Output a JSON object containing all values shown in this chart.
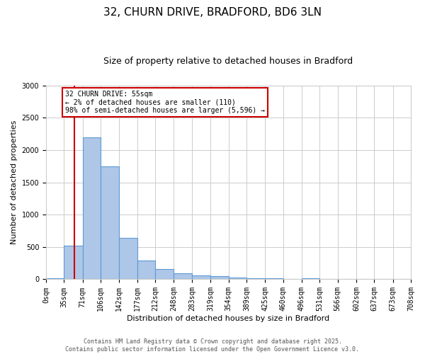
{
  "title1": "32, CHURN DRIVE, BRADFORD, BD6 3LN",
  "title2": "Size of property relative to detached houses in Bradford",
  "xlabel": "Distribution of detached houses by size in Bradford",
  "ylabel": "Number of detached properties",
  "bin_labels": [
    "0sqm",
    "35sqm",
    "71sqm",
    "106sqm",
    "142sqm",
    "177sqm",
    "212sqm",
    "248sqm",
    "283sqm",
    "319sqm",
    "354sqm",
    "389sqm",
    "425sqm",
    "460sqm",
    "496sqm",
    "531sqm",
    "566sqm",
    "602sqm",
    "637sqm",
    "673sqm",
    "708sqm"
  ],
  "bin_edges": [
    0,
    35,
    71,
    106,
    142,
    177,
    212,
    248,
    283,
    319,
    354,
    389,
    425,
    460,
    496,
    531,
    566,
    602,
    637,
    673,
    708
  ],
  "bar_heights": [
    20,
    520,
    2200,
    1750,
    640,
    290,
    155,
    90,
    55,
    45,
    30,
    20,
    15,
    8,
    20,
    5,
    3,
    2,
    1,
    1,
    0
  ],
  "bar_color": "#aec6e8",
  "bar_edge_color": "#5b9bd5",
  "property_size": 55,
  "vline_color": "#cc0000",
  "annotation_text": "32 CHURN DRIVE: 55sqm\n← 2% of detached houses are smaller (110)\n98% of semi-detached houses are larger (5,596) →",
  "annotation_box_color": "#ffffff",
  "annotation_box_edge": "#cc0000",
  "ylim": [
    0,
    3000
  ],
  "yticks": [
    0,
    500,
    1000,
    1500,
    2000,
    2500,
    3000
  ],
  "footer1": "Contains HM Land Registry data © Crown copyright and database right 2025.",
  "footer2": "Contains public sector information licensed under the Open Government Licence v3.0.",
  "bg_color": "#ffffff",
  "grid_color": "#cccccc",
  "title1_fontsize": 11,
  "title2_fontsize": 9,
  "annotation_fontsize": 7,
  "tick_fontsize": 7,
  "axis_label_fontsize": 8,
  "footer_fontsize": 6
}
